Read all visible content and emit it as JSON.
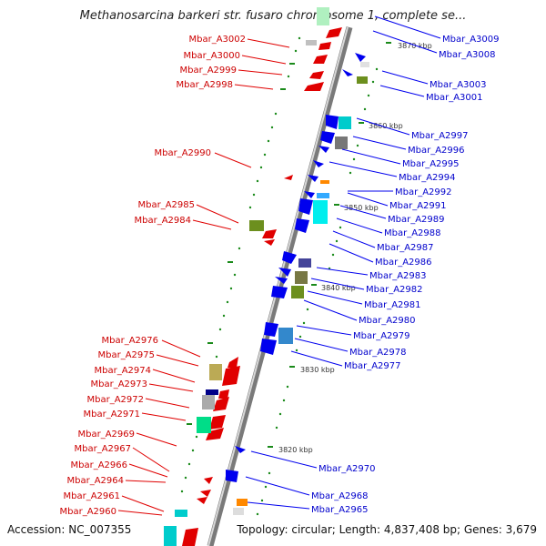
{
  "title": "Methanosarcina barkeri str. fusaro chromosome 1, complete se...",
  "footer": {
    "accession": "Accession: NC_007355",
    "topology": "Topology: circular; Length: 4,837,408 bp; Genes: 3,679"
  },
  "kbp_labels": [
    "3870 kbp",
    "3860 kbp",
    "3850 kbp",
    "3840 kbp",
    "3830 kbp",
    "3820 kbp"
  ],
  "left_genes": [
    "Mbar_A3002",
    "Mbar_A3000",
    "Mbar_A2999",
    "Mbar_A2998",
    "Mbar_A2990",
    "Mbar_A2985",
    "Mbar_A2984",
    "Mbar_A2976",
    "Mbar_A2975",
    "Mbar_A2974",
    "Mbar_A2973",
    "Mbar_A2972",
    "Mbar_A2971",
    "Mbar_A2969",
    "Mbar_A2967",
    "Mbar_A2966",
    "Mbar_A2964",
    "Mbar_A2961",
    "Mbar_A2960"
  ],
  "right_genes": [
    "Mbar_A3009",
    "Mbar_A3008",
    "Mbar_A3003",
    "Mbar_A3001",
    "Mbar_A2997",
    "Mbar_A2996",
    "Mbar_A2995",
    "Mbar_A2994",
    "Mbar_A2992",
    "Mbar_A2991",
    "Mbar_A2989",
    "Mbar_A2988",
    "Mbar_A2987",
    "Mbar_A2986",
    "Mbar_A2983",
    "Mbar_A2982",
    "Mbar_A2981",
    "Mbar_A2980",
    "Mbar_A2979",
    "Mbar_A2978",
    "Mbar_A2977",
    "Mbar_A2970",
    "Mbar_A2968",
    "Mbar_A2965"
  ],
  "colors": {
    "forward": "#e00000",
    "reverse": "#0000ee",
    "backbone": "#999999",
    "tick": "#1a8a1a"
  }
}
